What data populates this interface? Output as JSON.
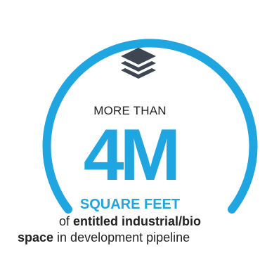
{
  "stat": {
    "prefix": "MORE THAN",
    "value": "4M",
    "unit": "SQUARE FEET",
    "line1_a": "of ",
    "line1_b": "entitled industrial/bio",
    "line2_a": "space",
    "line2_b": " in development pipeline",
    "icon": "layers-icon"
  },
  "colors": {
    "accent": "#1fa6e0",
    "text": "#222222"
  }
}
